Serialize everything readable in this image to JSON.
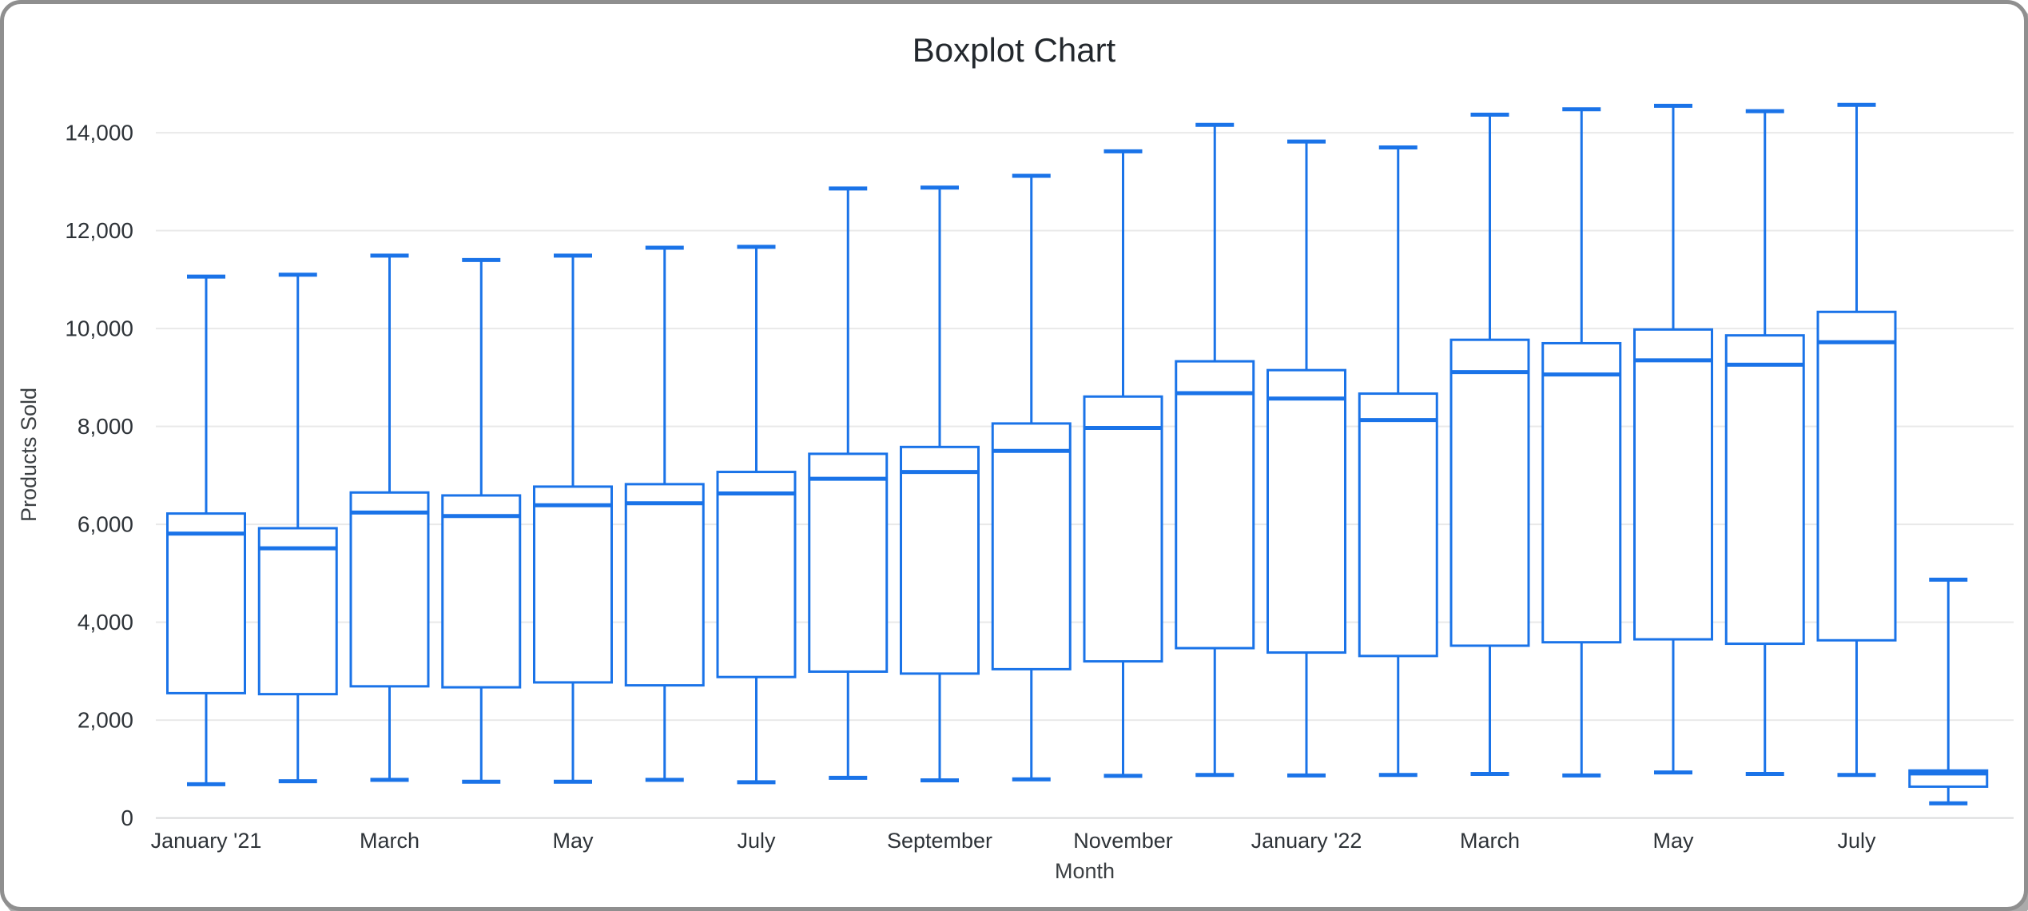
{
  "window": {
    "title": "Boxplot Chart"
  },
  "chart_data": {
    "type": "boxplot",
    "title": "Boxplot Chart",
    "xlabel": "Month",
    "ylabel": "Products Sold",
    "y_ticks": [
      0,
      2000,
      4000,
      6000,
      8000,
      10000,
      12000,
      14000
    ],
    "ylim": [
      0,
      14850
    ],
    "grid": true,
    "legend": "none",
    "accent_color": "#1a73e8",
    "gridline_color": "#e9e9e9",
    "baseline_color": "#d9dadb",
    "boxes": [
      {
        "label": "January '21",
        "min": 690,
        "q1": 2550,
        "median": 5810,
        "q3": 6220,
        "max": 11060
      },
      {
        "label": "",
        "min": 750,
        "q1": 2530,
        "median": 5510,
        "q3": 5920,
        "max": 11100
      },
      {
        "label": "March",
        "min": 780,
        "q1": 2690,
        "median": 6240,
        "q3": 6650,
        "max": 11490
      },
      {
        "label": "",
        "min": 740,
        "q1": 2670,
        "median": 6170,
        "q3": 6590,
        "max": 11400
      },
      {
        "label": "May",
        "min": 740,
        "q1": 2770,
        "median": 6390,
        "q3": 6770,
        "max": 11490
      },
      {
        "label": "",
        "min": 780,
        "q1": 2710,
        "median": 6430,
        "q3": 6820,
        "max": 11650
      },
      {
        "label": "July",
        "min": 730,
        "q1": 2880,
        "median": 6630,
        "q3": 7070,
        "max": 11670
      },
      {
        "label": "",
        "min": 820,
        "q1": 2990,
        "median": 6930,
        "q3": 7440,
        "max": 12860
      },
      {
        "label": "September",
        "min": 770,
        "q1": 2950,
        "median": 7070,
        "q3": 7580,
        "max": 12880
      },
      {
        "label": "",
        "min": 790,
        "q1": 3040,
        "median": 7500,
        "q3": 8060,
        "max": 13120
      },
      {
        "label": "November",
        "min": 860,
        "q1": 3200,
        "median": 7970,
        "q3": 8610,
        "max": 13620
      },
      {
        "label": "",
        "min": 880,
        "q1": 3470,
        "median": 8680,
        "q3": 9330,
        "max": 14160
      },
      {
        "label": "January '22",
        "min": 870,
        "q1": 3380,
        "median": 8570,
        "q3": 9150,
        "max": 13820
      },
      {
        "label": "",
        "min": 880,
        "q1": 3310,
        "median": 8130,
        "q3": 8670,
        "max": 13700
      },
      {
        "label": "March",
        "min": 900,
        "q1": 3520,
        "median": 9110,
        "q3": 9770,
        "max": 14370
      },
      {
        "label": "",
        "min": 870,
        "q1": 3590,
        "median": 9060,
        "q3": 9700,
        "max": 14480
      },
      {
        "label": "May",
        "min": 930,
        "q1": 3650,
        "median": 9350,
        "q3": 9980,
        "max": 14550
      },
      {
        "label": "",
        "min": 900,
        "q1": 3560,
        "median": 9260,
        "q3": 9860,
        "max": 14440
      },
      {
        "label": "July",
        "min": 880,
        "q1": 3630,
        "median": 9720,
        "q3": 10340,
        "max": 14570
      },
      {
        "label": "",
        "min": 300,
        "q1": 640,
        "median": 910,
        "q3": 970,
        "max": 4870
      }
    ]
  }
}
